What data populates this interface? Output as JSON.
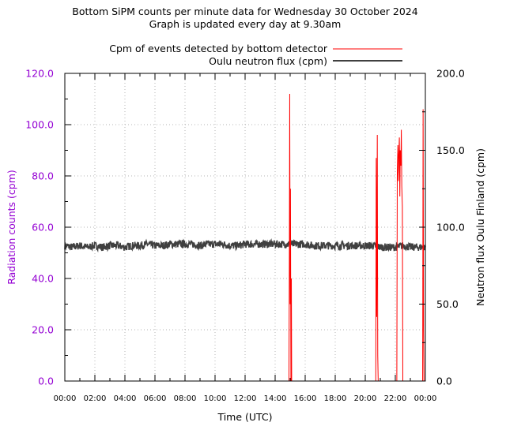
{
  "chart_data": {
    "type": "line",
    "title": "Bottom SiPM counts per minute data for Wednesday 30 October 2024",
    "subtitle": "Graph is updated every day at 9.30am",
    "xlabel": "Time (UTC)",
    "ylabel_left": "Radiation counts (cpm)",
    "ylabel_right": "Neutron flux Oulu Finland (cpm)",
    "x_range": [
      0,
      24
    ],
    "y_left_range": [
      0,
      120
    ],
    "y_right_range": [
      0,
      200
    ],
    "x_ticks": [
      "00:00",
      "02:00",
      "04:00",
      "06:00",
      "08:00",
      "10:00",
      "12:00",
      "14:00",
      "16:00",
      "18:00",
      "20:00",
      "22:00",
      "00:00"
    ],
    "y_left_ticks": [
      "0.0",
      "20.0",
      "40.0",
      "60.0",
      "80.0",
      "100.0",
      "120.0"
    ],
    "y_right_ticks": [
      "0.0",
      "50.0",
      "100.0",
      "150.0",
      "200.0"
    ],
    "grid": true,
    "legend_position": "top-right",
    "colors": {
      "bottom": "#ff0000",
      "oulu": "#404040",
      "left_axis": "#9400d3"
    },
    "series": [
      {
        "name": "Cpm of events detected by bottom detector",
        "axis": "left",
        "x": [
          14.92,
          14.95,
          14.97,
          15.0,
          15.02,
          15.05,
          15.08,
          15.1,
          20.7,
          20.73,
          20.76,
          20.8,
          20.83,
          20.86,
          22.1,
          22.13,
          22.17,
          22.2,
          22.23,
          22.27,
          22.3,
          22.33,
          22.37,
          22.4,
          22.43,
          22.47,
          22.5,
          23.82,
          23.85,
          23.88,
          23.91
        ],
        "y": [
          0,
          54,
          112,
          30,
          75,
          0,
          40,
          0,
          0,
          87,
          25,
          96,
          10,
          0,
          0,
          80,
          92,
          78,
          88,
          95,
          72,
          90,
          84,
          98,
          76,
          68,
          0,
          0,
          106,
          20,
          0
        ]
      },
      {
        "name": "Oulu neutron flux (cpm)",
        "axis": "right",
        "x": [
          0,
          0.5,
          1,
          1.5,
          2,
          2.5,
          3,
          3.5,
          4,
          4.5,
          5,
          5.5,
          6,
          6.5,
          7,
          7.5,
          8,
          8.5,
          9,
          9.5,
          10,
          10.5,
          11,
          11.5,
          12,
          12.5,
          13,
          13.5,
          14,
          14.5,
          15,
          15.5,
          16,
          16.5,
          17,
          17.5,
          18,
          18.5,
          19,
          19.5,
          20,
          20.5,
          21,
          21.5,
          22,
          22.5,
          23,
          23.5,
          24
        ],
        "y": [
          88,
          87,
          88,
          87,
          88,
          87,
          88,
          88,
          87,
          88,
          88,
          89,
          88,
          88,
          89,
          89,
          89,
          89,
          88,
          89,
          89,
          89,
          88,
          88,
          89,
          89,
          89,
          89,
          89,
          89,
          89,
          89,
          89,
          88,
          88,
          88,
          88,
          88,
          88,
          88,
          88,
          88,
          87,
          87,
          87,
          88,
          87,
          87,
          87
        ]
      }
    ]
  }
}
